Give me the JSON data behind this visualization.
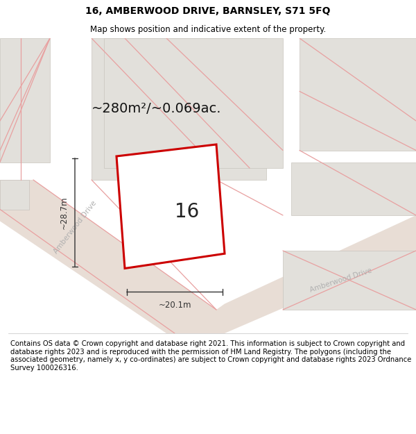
{
  "title": "16, AMBERWOOD DRIVE, BARNSLEY, S71 5FQ",
  "subtitle": "Map shows position and indicative extent of the property.",
  "footer": "Contains OS data © Crown copyright and database right 2021. This information is subject to Crown copyright and database rights 2023 and is reproduced with the permission of HM Land Registry. The polygons (including the associated geometry, namely x, y co-ordinates) are subject to Crown copyright and database rights 2023 Ordnance Survey 100026316.",
  "area_text": "~280m²/~0.069ac.",
  "width_text": "~20.1m",
  "height_text": "~28.7m",
  "plot_number": "16",
  "title_fontsize": 10,
  "subtitle_fontsize": 8.5,
  "footer_fontsize": 7.2,
  "area_fontsize": 14,
  "dim_fontsize": 8.5,
  "plot_num_fontsize": 20,
  "road_label_fontsize": 7.5,
  "map_bg": "#f0eeea",
  "white": "#ffffff",
  "plot_outline": "#cc0000",
  "block_fill": "#e2e0db",
  "block_outline": "#c8c4be",
  "road_fill": "#e8ddd5",
  "pink": "#e8a0a0",
  "dim_color": "#333333",
  "road_label_color": "#b0b0b0",
  "footer_border": "#cccccc"
}
